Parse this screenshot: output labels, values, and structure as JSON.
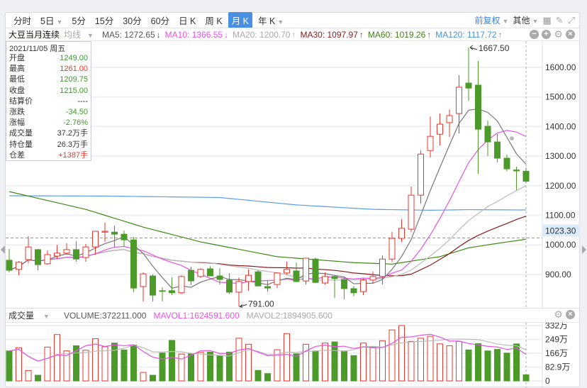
{
  "toolbar": {
    "periods": [
      {
        "label": "分时"
      },
      {
        "label": "5日",
        "dropdown": true
      },
      {
        "label": "5分"
      },
      {
        "label": "15分"
      },
      {
        "label": "30分"
      },
      {
        "label": "60分"
      },
      {
        "label": "日 K"
      },
      {
        "label": "周 K"
      },
      {
        "label": "月 K",
        "active": true
      },
      {
        "label": "年 K",
        "dropdown": true
      }
    ],
    "adjust": "前复权",
    "other": "其他",
    "icons": [
      "grid-icon",
      "pencil-icon",
      "fullscreen-icon"
    ]
  },
  "ma_row": {
    "symbol": "大豆当月连续",
    "indicator": "均线",
    "items": [
      {
        "label": "MA5: 1272.65",
        "arrow": "↓",
        "color": "#555555"
      },
      {
        "label": "MA10: 1366.55",
        "arrow": "↓",
        "color": "#e552e5"
      },
      {
        "label": "MA20: 1200.70",
        "arrow": "↑",
        "color": "#aaaaaa"
      },
      {
        "label": "MA30: 1097.97",
        "arrow": "↑",
        "color": "#8b1a1a"
      },
      {
        "label": "MA60: 1019.26",
        "arrow": "↑",
        "color": "#3f7f17"
      },
      {
        "label": "MA120: 1117.72",
        "arrow": "↑",
        "color": "#4a90e2"
      }
    ]
  },
  "info": {
    "date": "2021/11/05 周五",
    "rows": [
      {
        "label": "开盘",
        "value": "1249.00",
        "color": "g"
      },
      {
        "label": "最高",
        "value": "1261.00",
        "color": "rd"
      },
      {
        "label": "最低",
        "value": "1209.75",
        "color": "g"
      },
      {
        "label": "收盘",
        "value": "1215.00",
        "color": "g"
      },
      {
        "label": "结算价",
        "value": "----",
        "color": ""
      },
      {
        "label": "涨跌",
        "value": "-34.50",
        "color": "g"
      },
      {
        "label": "涨幅",
        "value": "-2.76%",
        "color": "g"
      },
      {
        "label": "成交量",
        "value": "37.2万手",
        "color": ""
      },
      {
        "label": "持仓量",
        "value": "26.3万手",
        "color": ""
      },
      {
        "label": "仓差",
        "value": "+1387手",
        "color": "rd"
      }
    ]
  },
  "volume_header": {
    "title": "成交量",
    "volume": "VOLUME:372211.000",
    "mavol1": "MAVOL1:1624591.600",
    "mavol2": "MAVOL2:1894905.600"
  },
  "colors": {
    "up": "#e8372c",
    "down": "#4c9a2a",
    "ma5": "#777777",
    "ma10": "#e552e5",
    "ma20": "#bbbbbb",
    "ma30": "#8b1a1a",
    "ma60": "#3f8a17",
    "ma120": "#5a9ee8"
  },
  "chart_data": [
    {
      "type": "candlestick",
      "title": "大豆当月连续 月K",
      "y_ticks": [
        "1600.00",
        "1500.00",
        "1400.00",
        "1300.00",
        "1200.00",
        "1100.00",
        "1000.00",
        "900.00"
      ],
      "ylim": [
        790,
        1693
      ],
      "crosshair_price": "1023.30",
      "high_label": "1667.50",
      "low_label": "791.00",
      "ohlc": [
        [
          948,
          986,
          907,
          914
        ],
        [
          917,
          945,
          897,
          941
        ],
        [
          950,
          1029,
          938,
          993
        ],
        [
          984,
          986,
          914,
          933
        ],
        [
          936,
          981,
          933,
          967
        ],
        [
          962,
          1000,
          952,
          972
        ],
        [
          972,
          1005,
          967,
          984
        ],
        [
          984,
          1012,
          943,
          952
        ],
        [
          957,
          1003,
          943,
          993
        ],
        [
          993,
          1046,
          967,
          1046
        ],
        [
          1043,
          1075,
          1010,
          1046
        ],
        [
          1043,
          1065,
          993,
          1036
        ],
        [
          1036,
          1048,
          993,
          1017
        ],
        [
          1017,
          1027,
          840,
          854
        ],
        [
          859,
          907,
          809,
          902
        ],
        [
          895,
          900,
          809,
          830
        ],
        [
          845,
          857,
          809,
          843
        ],
        [
          845,
          890,
          830,
          838
        ],
        [
          838,
          898,
          833,
          893
        ],
        [
          914,
          926,
          864,
          878
        ],
        [
          893,
          921,
          888,
          917
        ],
        [
          919,
          928,
          895,
          895
        ],
        [
          895,
          921,
          866,
          883
        ],
        [
          881,
          905,
          835,
          840
        ],
        [
          840,
          890,
          791,
          876
        ],
        [
          876,
          917,
          845,
          897
        ],
        [
          909,
          914,
          861,
          861
        ],
        [
          859,
          878,
          842,
          854
        ],
        [
          866,
          905,
          854,
          905
        ],
        [
          905,
          943,
          900,
          917
        ],
        [
          912,
          940,
          873,
          876
        ],
        [
          878,
          955,
          866,
          955
        ],
        [
          952,
          957,
          871,
          873
        ],
        [
          871,
          907,
          866,
          893
        ],
        [
          893,
          895,
          821,
          886
        ],
        [
          883,
          890,
          816,
          852
        ],
        [
          852,
          861,
          826,
          838
        ],
        [
          842,
          886,
          830,
          881
        ],
        [
          881,
          910,
          871,
          893
        ],
        [
          893,
          964,
          866,
          952
        ],
        [
          952,
          1044,
          943,
          1022
        ],
        [
          1022,
          1087,
          1010,
          1056
        ],
        [
          1053,
          1197,
          1044,
          1168
        ],
        [
          1168,
          1319,
          1140,
          1307
        ],
        [
          1319,
          1434,
          1295,
          1367
        ],
        [
          1374,
          1444,
          1336,
          1408
        ],
        [
          1413,
          1458,
          1365,
          1437
        ],
        [
          1444,
          1574,
          1377,
          1533
        ],
        [
          1547,
          1667.5,
          1487,
          1530
        ],
        [
          1540,
          1622,
          1240,
          1391
        ],
        [
          1401,
          1420,
          1300,
          1348
        ],
        [
          1348,
          1375,
          1279,
          1293
        ],
        [
          1293,
          1305,
          1248,
          1257
        ],
        [
          1253,
          1264,
          1185,
          1250
        ],
        [
          1249,
          1261,
          1209.75,
          1215
        ]
      ],
      "ma60": [
        [
          0,
          1180
        ],
        [
          8,
          1120
        ],
        [
          14,
          1060
        ],
        [
          20,
          1010
        ],
        [
          28,
          960
        ],
        [
          36,
          940
        ],
        [
          40,
          935
        ],
        [
          45,
          960
        ],
        [
          48,
          990
        ],
        [
          51,
          1005
        ],
        [
          54,
          1019
        ]
      ],
      "ma120": [
        [
          0,
          1166
        ],
        [
          10,
          1165
        ],
        [
          22,
          1160
        ],
        [
          30,
          1135
        ],
        [
          38,
          1120
        ],
        [
          44,
          1117
        ],
        [
          48,
          1119
        ],
        [
          54,
          1118
        ]
      ]
    },
    {
      "type": "bar",
      "title": "成交量",
      "unit": "万",
      "y_ticks": [
        "332万",
        "249万",
        "166万",
        "82.9万",
        "0"
      ],
      "ylim": [
        0,
        332
      ],
      "values": [
        180,
        199,
        62,
        34,
        203,
        278,
        180,
        211,
        184,
        253,
        205,
        227,
        186,
        215,
        51,
        34,
        167,
        243,
        161,
        163,
        171,
        173,
        152,
        173,
        256,
        220,
        63,
        44,
        187,
        284,
        163,
        220,
        180,
        227,
        234,
        180,
        152,
        227,
        203,
        241,
        306,
        332,
        237,
        256,
        268,
        222,
        211,
        237,
        186,
        224,
        180,
        189,
        167,
        222,
        37
      ]
    }
  ]
}
